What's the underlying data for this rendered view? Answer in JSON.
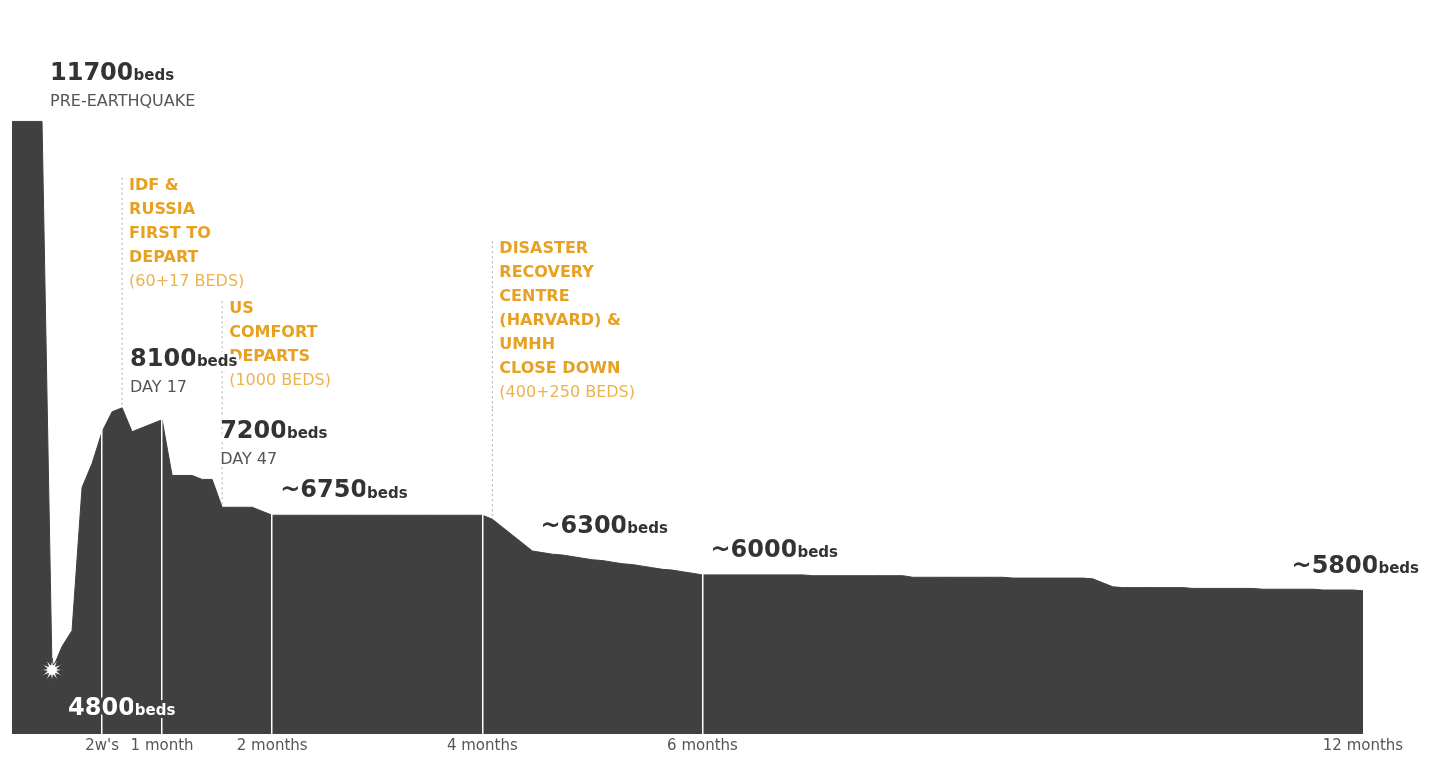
{
  "chart_data": {
    "type": "area",
    "color": "#404040",
    "marker": "none",
    "legend": false,
    "grid": "x",
    "tick_labels": "x",
    "categories": [
      null,
      null,
      null,
      null,
      null,
      null,
      null,
      null,
      null,
      "2w's",
      null,
      null,
      null,
      null,
      null,
      "1 month",
      null,
      null,
      null,
      null,
      null,
      null,
      null,
      null,
      null,
      null,
      "2 months",
      null,
      null,
      null,
      null,
      null,
      null,
      null,
      null,
      null,
      null,
      null,
      null,
      null,
      null,
      null,
      null,
      null,
      null,
      null,
      null,
      "4 months",
      null,
      null,
      null,
      null,
      null,
      null,
      null,
      null,
      null,
      null,
      null,
      null,
      null,
      null,
      null,
      null,
      null,
      null,
      null,
      null,
      null,
      "6 months",
      null,
      null,
      null,
      null,
      null,
      null,
      null,
      null,
      null,
      null,
      null,
      null,
      null,
      null,
      null,
      null,
      null,
      null,
      null,
      null,
      null,
      null,
      null,
      null,
      null,
      null,
      null,
      null,
      null,
      null,
      null,
      null,
      null,
      null,
      null,
      null,
      null,
      null,
      null,
      null,
      null,
      null,
      null,
      null,
      null,
      null,
      null,
      null,
      null,
      null,
      null,
      null,
      null,
      null,
      null,
      null,
      null,
      null,
      null,
      null,
      null,
      null,
      null,
      null,
      null,
      "12 months"
    ],
    "values": [
      11700,
      11700,
      11700,
      11700,
      4800,
      5100,
      5300,
      7100,
      7400,
      7800,
      8050,
      8100,
      7800,
      7850,
      7900,
      7950,
      7250,
      7250,
      7250,
      7200,
      7200,
      6850,
      6850,
      6850,
      6850,
      6800,
      6750,
      6750,
      6750,
      6750,
      6750,
      6750,
      6750,
      6750,
      6750,
      6750,
      6750,
      6750,
      6750,
      6750,
      6750,
      6750,
      6750,
      6750,
      6750,
      6750,
      6750,
      6750,
      6700,
      6600,
      6500,
      6400,
      6300,
      6280,
      6260,
      6250,
      6230,
      6210,
      6190,
      6180,
      6160,
      6140,
      6130,
      6110,
      6090,
      6070,
      6060,
      6040,
      6020,
      6000,
      6000,
      6000,
      6000,
      6000,
      6000,
      6000,
      6000,
      6000,
      6000,
      6000,
      5990,
      5990,
      5990,
      5990,
      5990,
      5990,
      5990,
      5990,
      5990,
      5990,
      5970,
      5970,
      5970,
      5970,
      5970,
      5970,
      5970,
      5970,
      5970,
      5970,
      5960,
      5960,
      5960,
      5960,
      5960,
      5960,
      5960,
      5960,
      5950,
      5900,
      5850,
      5840,
      5840,
      5840,
      5840,
      5840,
      5840,
      5840,
      5830,
      5830,
      5830,
      5830,
      5830,
      5830,
      5830,
      5820,
      5820,
      5820,
      5820,
      5820,
      5820,
      5810,
      5810,
      5810,
      5810,
      5800
    ],
    "value_labels": [
      null,
      null,
      null,
      "11700beds\nPRE-EARTHQUAKE",
      "4800beds",
      null,
      null,
      null,
      null,
      null,
      null,
      "8100beds\nDAY 17",
      null,
      null,
      null,
      null,
      null,
      null,
      null,
      null,
      "7200beds\nDAY 47",
      null,
      null,
      null,
      null,
      null,
      "~6750beds",
      null,
      null,
      null,
      null,
      null,
      null,
      null,
      null,
      null,
      null,
      null,
      null,
      null,
      null,
      null,
      null,
      null,
      null,
      null,
      null,
      null,
      null,
      null,
      null,
      null,
      "~6300beds",
      null,
      null,
      null,
      null,
      null,
      null,
      null,
      null,
      null,
      null,
      null,
      null,
      null,
      null,
      null,
      null,
      "~6000beds",
      null,
      null,
      null,
      null,
      null,
      null,
      null,
      null,
      null,
      null,
      null,
      null,
      null,
      null,
      null,
      null,
      null,
      null,
      null,
      null,
      null,
      null,
      null,
      null,
      null,
      null,
      null,
      null,
      null,
      null,
      null,
      null,
      null,
      null,
      null,
      null,
      null,
      null,
      null,
      null,
      null,
      null,
      null,
      null,
      null,
      null,
      null,
      null,
      null,
      null,
      null,
      null,
      null,
      null,
      null,
      null,
      null,
      null,
      null,
      null,
      null,
      null,
      null,
      null,
      null,
      "~5800beds"
    ],
    "annotations": [
      "IDF &\nRUSSIA\nFIRST TO\nDEPART\n(60+17 BEDS)",
      "US\nCOMFORT\nDEPARTS\n(1000 BEDS)",
      "DISASTER\nRECOVERY\nCENTRE\n(HARVARD) &\nUMHH\nCLOSE DOWN\n(400+250 BEDS)"
    ]
  }
}
